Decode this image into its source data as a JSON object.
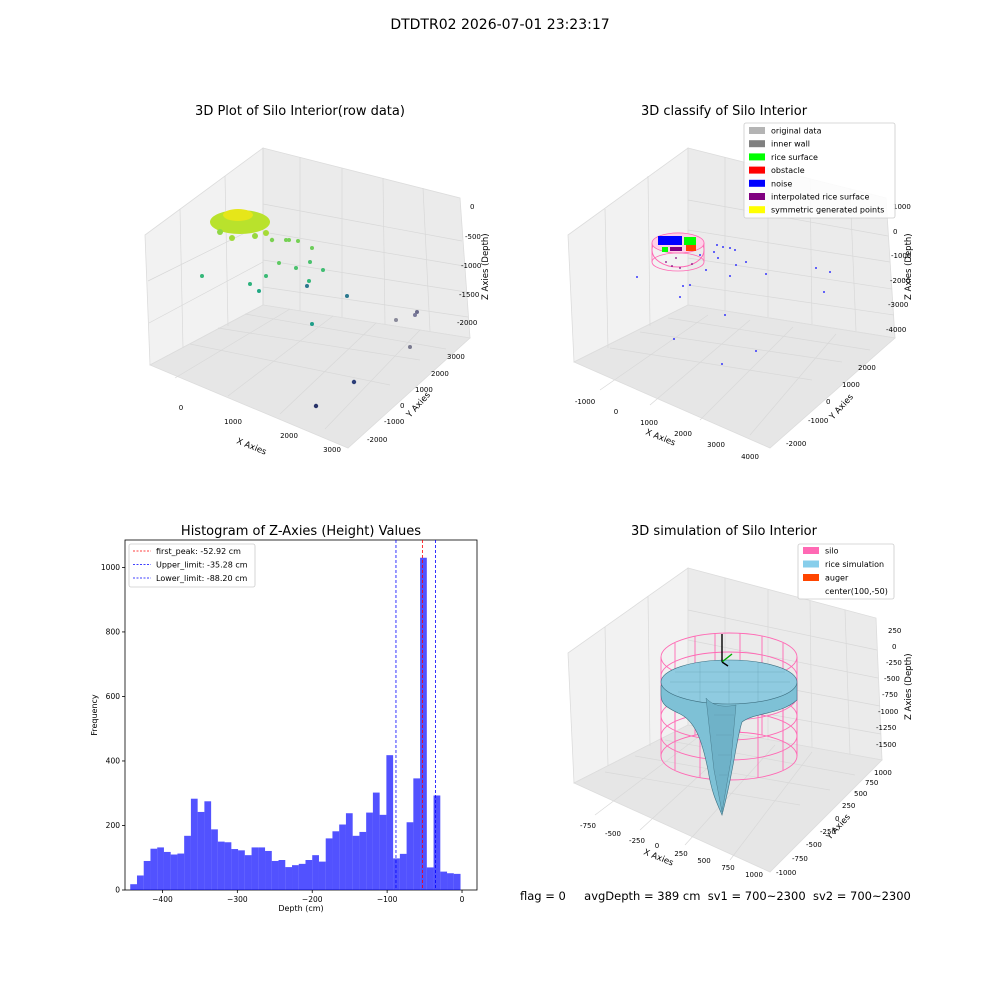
{
  "suptitle": "DTDTR02 2026-07-01 23:23:17",
  "panels": {
    "tl": {
      "title": "3D Plot of Silo Interior(row data)",
      "xlabel": "X Axies",
      "ylabel": "Y Axies",
      "zlabel": "Z Axies (Depth)",
      "xticks": [
        "0",
        "1000",
        "2000",
        "3000"
      ],
      "yticks": [
        "-2000",
        "-1000",
        "0",
        "1000",
        "2000",
        "3000"
      ],
      "zticks": [
        "0",
        "-500",
        "-1000",
        "-1500",
        "-2000"
      ]
    },
    "tr": {
      "title": "3D classify of Silo Interior",
      "xlabel": "X Axies",
      "ylabel": "Y Axies",
      "zlabel": "Z Axies (Depth)",
      "xticks": [
        "-1000",
        "0",
        "1000",
        "2000",
        "3000",
        "4000"
      ],
      "yticks": [
        "-2000",
        "-1000",
        "0",
        "1000",
        "2000"
      ],
      "zticks": [
        "1000",
        "0",
        "-1000",
        "-2000",
        "-3000",
        "-4000"
      ],
      "legend": [
        {
          "label": "original data",
          "color": "#b4b4b4"
        },
        {
          "label": "inner wall",
          "color": "#808080"
        },
        {
          "label": "rice surface",
          "color": "#00ff00"
        },
        {
          "label": "obstacle",
          "color": "#ff0000"
        },
        {
          "label": "noise",
          "color": "#0000ff"
        },
        {
          "label": "interpolated rice surface",
          "color": "#800080"
        },
        {
          "label": "symmetric generated points",
          "color": "#ffff00"
        }
      ]
    },
    "br": {
      "title": "3D simulation of Silo Interior",
      "xlabel": "X Axies",
      "ylabel": "Y Axies",
      "zlabel": "Z Axies (Depth)",
      "xticks": [
        "-750",
        "-500",
        "-250",
        "0",
        "250",
        "500",
        "750",
        "1000"
      ],
      "yticks": [
        "-1000",
        "-750",
        "-500",
        "-250",
        "0",
        "250",
        "500",
        "750",
        "1000"
      ],
      "zticks": [
        "250",
        "0",
        "-250",
        "-500",
        "-750",
        "-1000",
        "-1250",
        "-1500"
      ],
      "legend": [
        {
          "label": "silo",
          "color": "#ff69b4"
        },
        {
          "label": "rice simulation",
          "color": "#87ceeb"
        },
        {
          "label": "auger",
          "color": "#ff4500"
        },
        {
          "label": "center(100,-50)",
          "color": ""
        }
      ]
    }
  },
  "chart_data": [
    {
      "type": "histogram",
      "title": "Histogram of Z-Axies (Height) Values",
      "xlabel": "Depth (cm)",
      "ylabel": "Frequency",
      "xlim": [
        -450,
        20
      ],
      "ylim": [
        0,
        1085
      ],
      "xticks": [
        -400,
        -300,
        -200,
        -100,
        0
      ],
      "yticks": [
        0,
        200,
        400,
        600,
        800,
        1000
      ],
      "bar_color": "#0000ff",
      "bins": {
        "start": -443,
        "width": 9,
        "counts": [
          18,
          45,
          90,
          128,
          132,
          118,
          110,
          113,
          168,
          283,
          242,
          275,
          188,
          150,
          148,
          127,
          123,
          108,
          132,
          132,
          121,
          90,
          93,
          71,
          77,
          81,
          93,
          108,
          88,
          160,
          182,
          203,
          238,
          168,
          180,
          240,
          302,
          233,
          418,
          98,
          112,
          210,
          346,
          1030,
          70,
          293,
          57,
          52,
          50
        ]
      },
      "vlines": [
        {
          "x": -52.92,
          "color": "#ff0000",
          "label": "first_peak: -52.92 cm"
        },
        {
          "x": -35.28,
          "color": "#0000ff",
          "label": "Upper_limit: -35.28 cm"
        },
        {
          "x": -88.2,
          "color": "#0000ff",
          "label": "Lower_limit: -88.20 cm"
        }
      ]
    },
    {
      "type": "scatter",
      "title": "3D Plot of Silo Interior(row data)",
      "note_points": "raw point cloud, dense yellow-green ring near z 0 to -200"
    },
    {
      "type": "scatter",
      "title": "3D classify of Silo Interior"
    },
    {
      "type": "surface",
      "title": "3D simulation of Silo Interior"
    }
  ],
  "footer": {
    "flag": "flag = 0",
    "avg": "avgDepth = 389 cm",
    "sv1": "sv1 = 700~2300",
    "sv2": "sv2 = 700~2300"
  }
}
